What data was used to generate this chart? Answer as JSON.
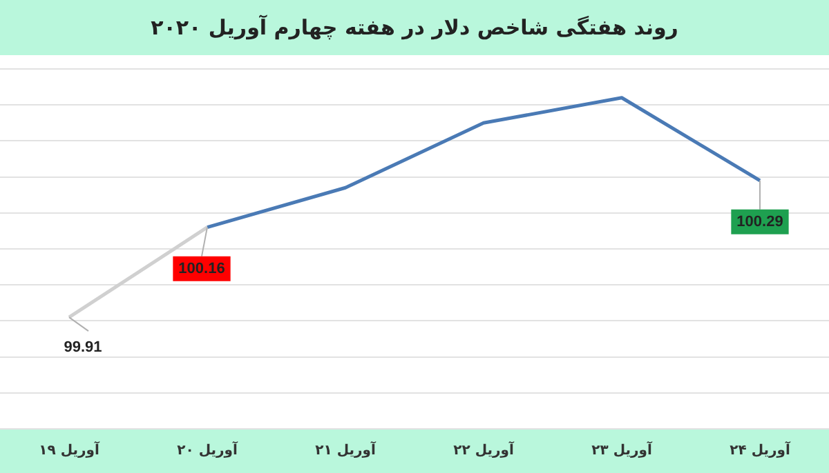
{
  "chart_data": {
    "type": "line",
    "title": "روند هفتگی شاخص دلار در هفته چهارم آوریل ۲۰۲۰",
    "categories": [
      "۱۹ آوریل",
      "۲۰ آوریل",
      "۲۱ آوریل",
      "۲۲ آوریل",
      "۲۳ آوریل",
      "۲۴ آوریل"
    ],
    "series": [
      {
        "color": "#d0d0d0",
        "values": [
          99.91,
          100.16,
          null,
          null,
          null,
          null
        ],
        "value_labels": [
          "99.91",
          null,
          null,
          null,
          null,
          null
        ]
      },
      {
        "color": "#4a7ab5",
        "values": [
          null,
          100.16,
          100.27,
          100.45,
          100.52,
          100.29
        ],
        "value_labels": [
          null,
          "100.16",
          null,
          null,
          null,
          "100.29"
        ]
      }
    ],
    "ylim": [
      99.6,
      100.6
    ],
    "yticks": [
      {
        "value": 99.6,
        "label": null
      },
      {
        "value": 99.7,
        "label": null
      },
      {
        "value": 99.8,
        "label": null
      },
      {
        "value": 99.9,
        "label": null
      },
      {
        "value": 100.0,
        "label": null
      },
      {
        "value": 100.1,
        "label": null
      },
      {
        "value": 100.2,
        "label": null
      },
      {
        "value": 100.3,
        "label": null
      },
      {
        "value": 100.4,
        "label": null
      },
      {
        "value": 100.5,
        "label": null
      },
      {
        "value": 100.6,
        "label": null
      }
    ],
    "grid": "y",
    "tick_labels": "x",
    "marker": "none",
    "line_style": "solid",
    "legend": false
  }
}
